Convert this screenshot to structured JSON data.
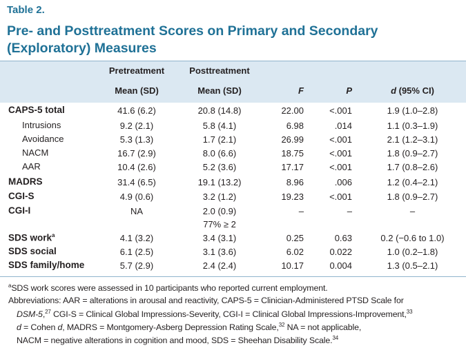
{
  "label": "Table 2.",
  "title": [
    "Pre- and Posttreatment Scores on Primary and Secondary",
    "(Exploratory) Measures"
  ],
  "table": {
    "group_headers": [
      "Pretreatment",
      "Posttreatment"
    ],
    "columns": [
      "Mean (SD)",
      "Mean (SD)",
      "F",
      "P",
      "d (95% CI)"
    ],
    "rows": [
      {
        "label": "CAPS-5 total",
        "cells": [
          "41.6 (6.2)",
          "20.8 (14.8)",
          "22.00",
          "<.001",
          "1.9 (1.0–2.8)"
        ]
      },
      {
        "label": "Intrusions",
        "cells": [
          "9.2 (2.1)",
          "5.8 (4.1)",
          "6.98",
          ".014",
          "1.1 (0.3–1.9)"
        ]
      },
      {
        "label": "Avoidance",
        "cells": [
          "5.3 (1.3)",
          "1.7 (2.1)",
          "26.99",
          "<.001",
          "2.1 (1.2–3.1)"
        ]
      },
      {
        "label": "NACM",
        "cells": [
          "16.7 (2.9)",
          "8.0 (6.6)",
          "18.75",
          "<.001",
          "1.8 (0.9–2.7)"
        ]
      },
      {
        "label": "AAR",
        "cells": [
          "10.4 (2.6)",
          "5.2 (3.6)",
          "17.17",
          "<.001",
          "1.7 (0.8–2.6)"
        ]
      },
      {
        "label": "MADRS",
        "cells": [
          "31.4 (6.5)",
          "19.1 (13.2)",
          "8.96",
          ".006",
          "1.2 (0.4–2.1)"
        ]
      },
      {
        "label": "CGI-S",
        "cells": [
          "4.9 (0.6)",
          "3.2 (1.2)",
          "19.23",
          "<.001",
          "1.8 (0.9–2.7)"
        ]
      },
      {
        "label": "CGI-I",
        "cells": [
          "NA",
          [
            "2.0 (0.9)",
            "77% ≥ 2"
          ],
          "–",
          "–",
          "–"
        ]
      },
      {
        "label": "SDS work",
        "sup": "a",
        "cells": [
          "4.1 (3.2)",
          "3.4 (3.1)",
          "0.25",
          "0.63",
          "0.2 (−0.6 to 1.0)"
        ]
      },
      {
        "label": "SDS social",
        "cells": [
          "6.1 (2.5)",
          "3.1 (3.6)",
          "6.02",
          "0.022",
          "1.0 (0.2–1.8)"
        ]
      },
      {
        "label": "SDS family/home",
        "cells": [
          "5.7 (2.9)",
          "2.4 (2.4)",
          "10.17",
          "0.004",
          "1.3 (0.5–2.1)"
        ]
      }
    ]
  },
  "footnotes": [
    [
      {
        "sup": "a"
      },
      "SDS work scores were assessed in 10 participants who reported current employment."
    ],
    [
      "Abbreviations: AAR = alterations in arousal and reactivity, CAPS-5 = Clinician-Administered PTSD Scale for"
    ],
    [
      {
        "i": "DSM-5"
      },
      ",",
      {
        "sup": "27"
      },
      " CGI-S = Clinical Global Impressions-Severity, CGI-I = Clinical Global Impressions-Improvement,",
      {
        "sup": "33"
      }
    ],
    [
      {
        "i": "d"
      },
      " = Cohen ",
      {
        "i": "d"
      },
      ", MADRS = Montgomery-Asberg Depression Rating Scale,",
      {
        "sup": "32"
      },
      " NA = not applicable,"
    ],
    [
      "NACM = negative alterations in cognition and mood, SDS = Sheehan Disability Scale.",
      {
        "sup": "34"
      }
    ]
  ]
}
